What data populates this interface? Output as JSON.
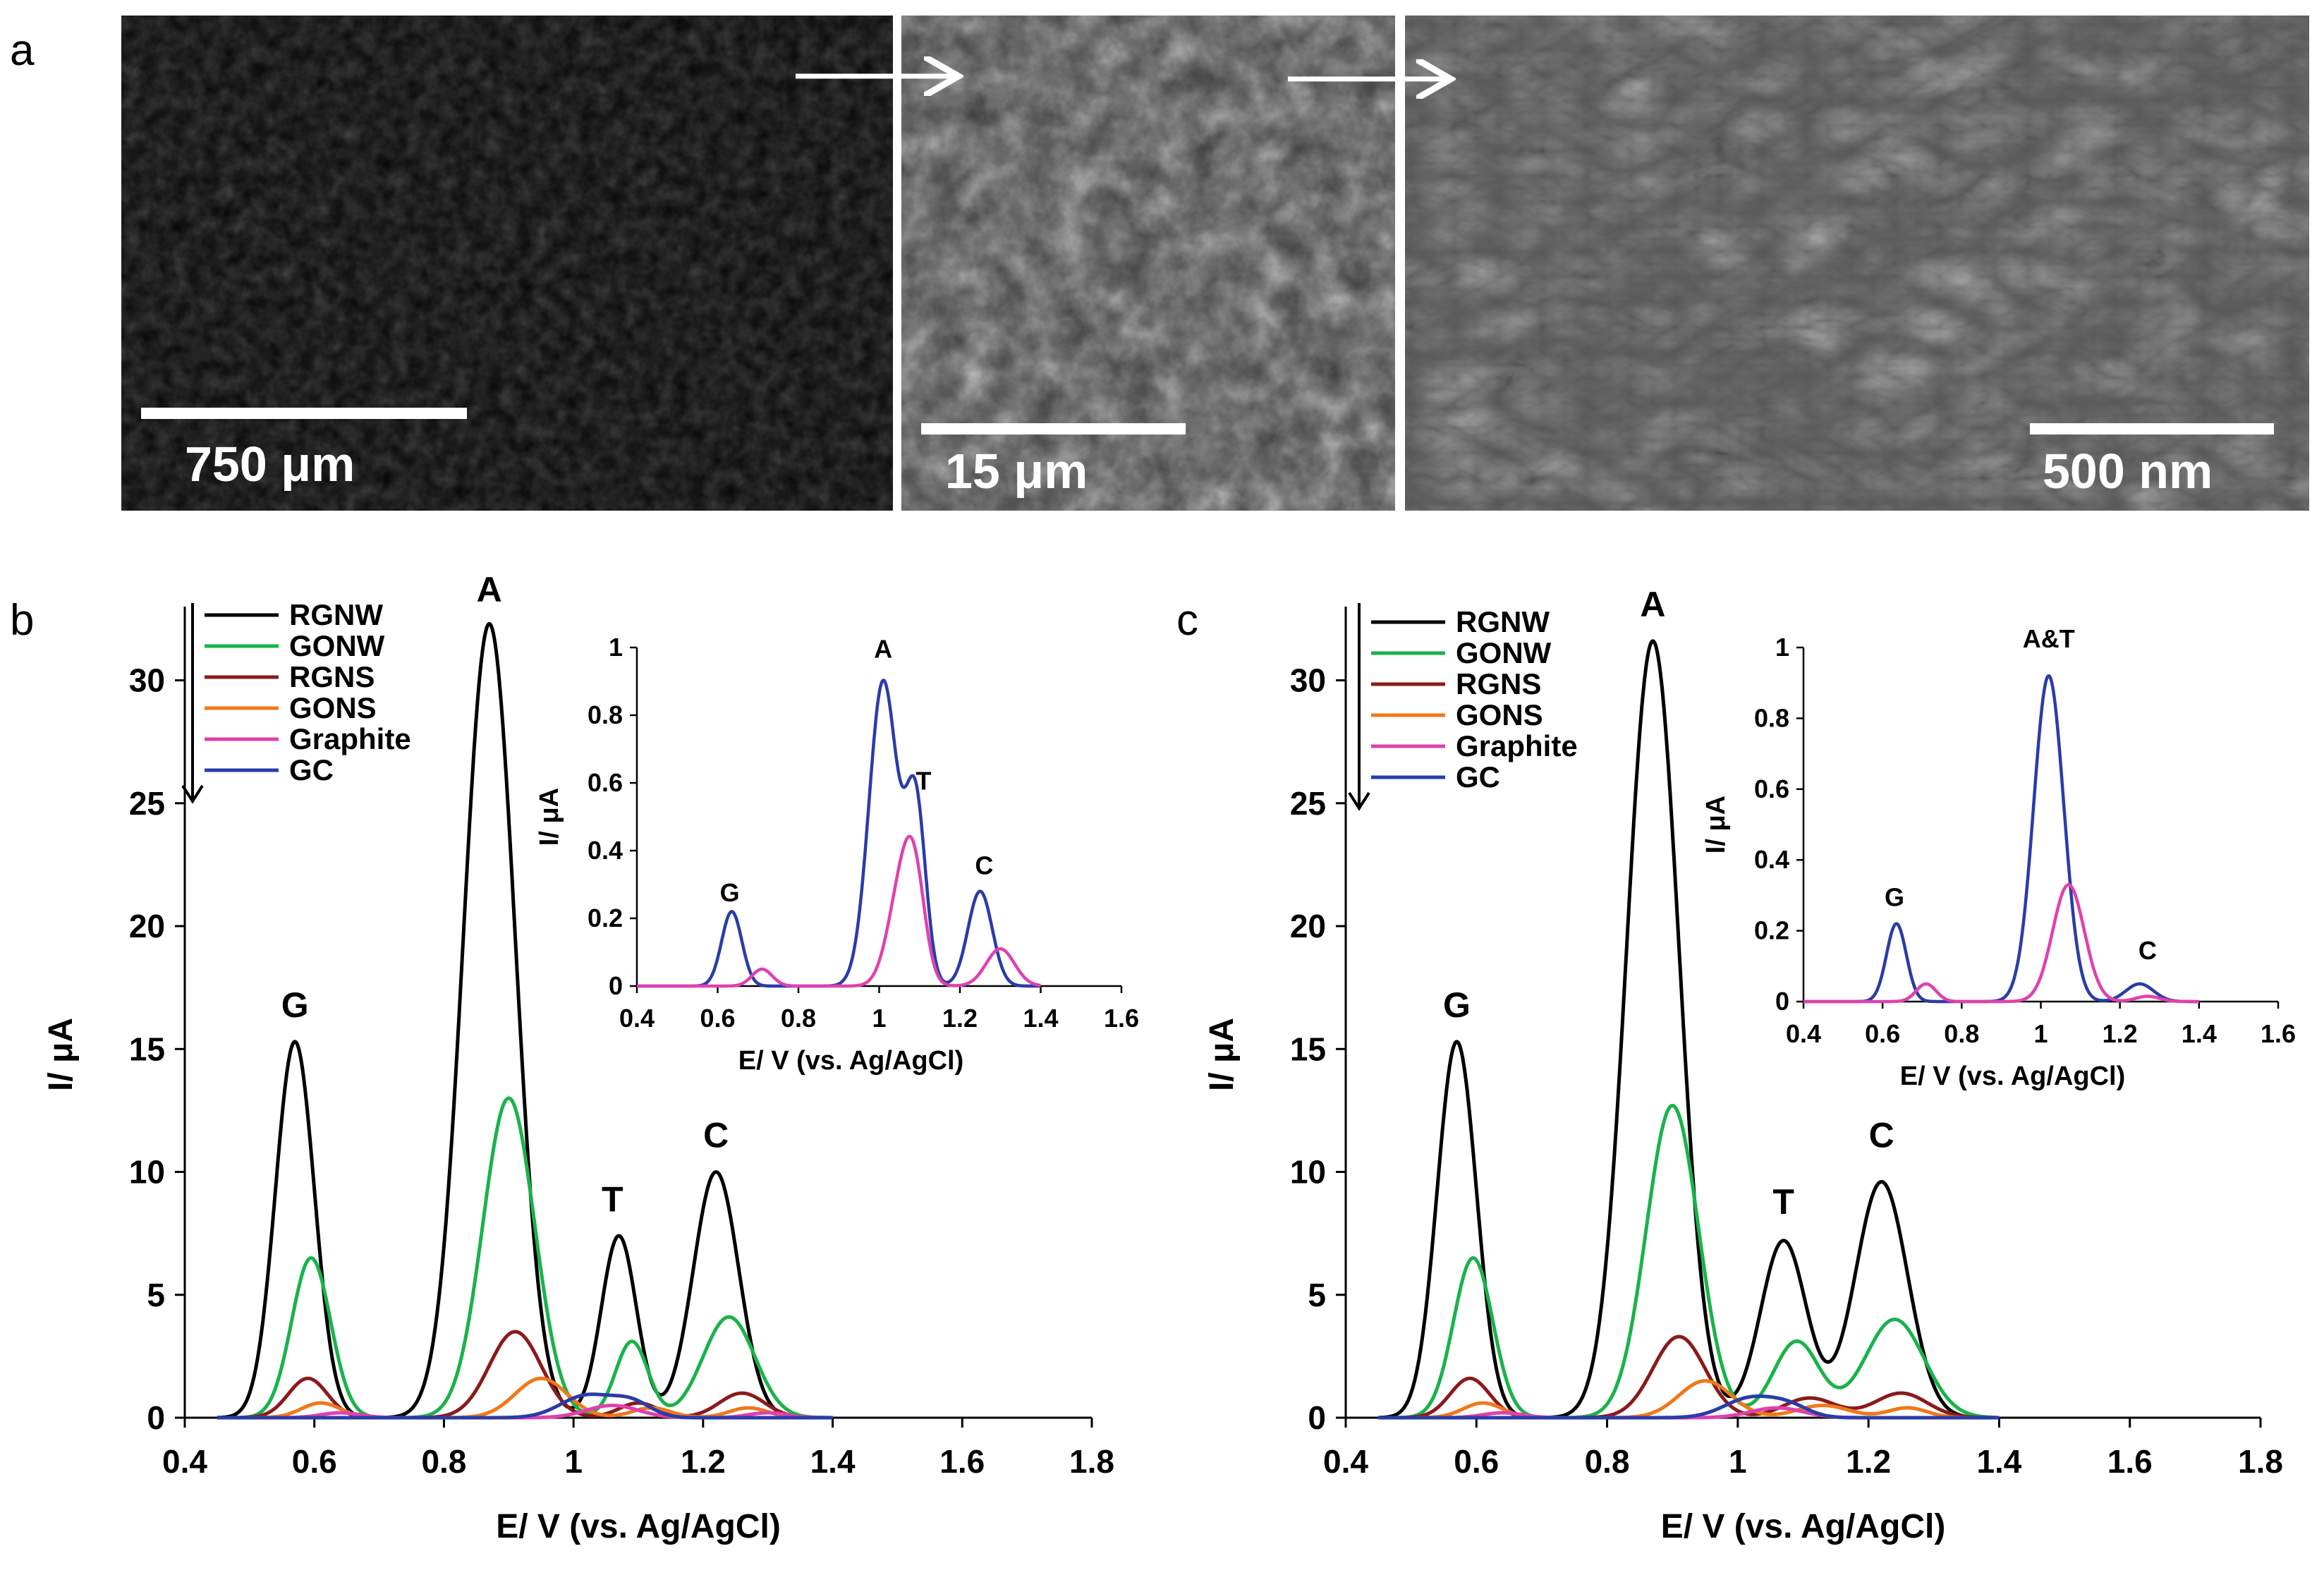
{
  "figure": {
    "panel_a_label": "a",
    "panel_b_label": "b",
    "panel_c_label": "c",
    "sem_images": [
      {
        "scale_label": "750 μm"
      },
      {
        "scale_label": "15 μm"
      },
      {
        "scale_label": "500 nm"
      }
    ]
  },
  "colors": {
    "RGNW": "#000000",
    "GONW": "#19b34a",
    "RGNS": "#8b1a1a",
    "GONS": "#f07818",
    "Graphite": "#e040b0",
    "GC": "#2a3ca8"
  },
  "chart_data": [
    {
      "id": "b",
      "type": "line",
      "xlabel": "E/ V (vs. Ag/AgCl)",
      "ylabel": "I/ μA",
      "xlim": [
        0.4,
        1.8
      ],
      "ylim": [
        0,
        33
      ],
      "xticks": [
        "0.4",
        "0.6",
        "0.8",
        "1",
        "1.2",
        "1.4",
        "1.6",
        "1.8"
      ],
      "yticks": [
        "0",
        "5",
        "10",
        "15",
        "20",
        "25",
        "30"
      ],
      "legend": [
        "RGNW",
        "GONW",
        "RGNS",
        "GONS",
        "Graphite",
        "GC"
      ],
      "legend_position": "top-left",
      "peak_labels": [
        {
          "text": "G",
          "x": 0.57,
          "y": 16.3
        },
        {
          "text": "A",
          "x": 0.87,
          "y": 33.2
        },
        {
          "text": "T",
          "x": 1.06,
          "y": 8.4
        },
        {
          "text": "C",
          "x": 1.22,
          "y": 11.0
        }
      ],
      "series": [
        {
          "name": "RGNW",
          "peaks": [
            [
              0.57,
              15.3,
              0.03
            ],
            [
              0.87,
              32.3,
              0.04
            ],
            [
              1.07,
              7.4,
              0.027
            ],
            [
              1.22,
              10.0,
              0.035
            ]
          ]
        },
        {
          "name": "GONW",
          "peaks": [
            [
              0.595,
              6.5,
              0.03
            ],
            [
              0.9,
              13.0,
              0.04
            ],
            [
              1.09,
              3.1,
              0.025
            ],
            [
              1.24,
              4.1,
              0.04
            ]
          ]
        },
        {
          "name": "RGNS",
          "peaks": [
            [
              0.59,
              1.6,
              0.03
            ],
            [
              0.91,
              3.5,
              0.04
            ],
            [
              1.1,
              0.6,
              0.03
            ],
            [
              1.26,
              1.0,
              0.035
            ]
          ]
        },
        {
          "name": "GONS",
          "peaks": [
            [
              0.61,
              0.6,
              0.03
            ],
            [
              0.95,
              1.6,
              0.04
            ],
            [
              1.12,
              0.4,
              0.03
            ],
            [
              1.27,
              0.4,
              0.03
            ]
          ]
        },
        {
          "name": "Graphite",
          "peaks": [
            [
              0.64,
              0.2,
              0.03
            ],
            [
              1.06,
              0.5,
              0.04
            ],
            [
              1.3,
              0.2,
              0.03
            ]
          ]
        },
        {
          "name": "GC",
          "peaks": [
            [
              1.02,
              0.9,
              0.04
            ],
            [
              1.09,
              0.6,
              0.03
            ]
          ]
        }
      ],
      "inset": {
        "xlabel": "E/ V (vs. Ag/AgCl)",
        "ylabel": "I/ μA",
        "xlim": [
          0.4,
          1.6
        ],
        "ylim": [
          0,
          1
        ],
        "xticks": [
          "0.4",
          "0.6",
          "0.8",
          "1",
          "1.2",
          "1.4",
          "1.6"
        ],
        "yticks": [
          "0",
          "0.2",
          "0.4",
          "0.6",
          "0.8",
          "1"
        ],
        "peak_labels": [
          {
            "text": "G",
            "x": 0.63,
            "y": 0.25
          },
          {
            "text": "A",
            "x": 1.01,
            "y": 0.97
          },
          {
            "text": "T",
            "x": 1.11,
            "y": 0.58
          },
          {
            "text": "C",
            "x": 1.26,
            "y": 0.33
          }
        ],
        "series": [
          {
            "name": "GC",
            "peaks": [
              [
                0.635,
                0.22,
                0.025
              ],
              [
                1.01,
                0.9,
                0.035
              ],
              [
                1.09,
                0.54,
                0.025
              ],
              [
                1.25,
                0.28,
                0.03
              ]
            ]
          },
          {
            "name": "Graphite",
            "peaks": [
              [
                0.71,
                0.05,
                0.025
              ],
              [
                1.06,
                0.32,
                0.035
              ],
              [
                1.09,
                0.18,
                0.025
              ],
              [
                1.3,
                0.11,
                0.035
              ]
            ]
          }
        ]
      }
    },
    {
      "id": "c",
      "type": "line",
      "xlabel": "E/ V (vs. Ag/AgCl)",
      "ylabel": "I/ μA",
      "xlim": [
        0.4,
        1.8
      ],
      "ylim": [
        0,
        33
      ],
      "xticks": [
        "0.4",
        "0.6",
        "0.8",
        "1",
        "1.2",
        "1.4",
        "1.6",
        "1.8"
      ],
      "yticks": [
        "0",
        "5",
        "10",
        "15",
        "20",
        "25",
        "30"
      ],
      "legend": [
        "RGNW",
        "GONW",
        "RGNS",
        "GONS",
        "Graphite",
        "GC"
      ],
      "legend_position": "top-left",
      "peak_labels": [
        {
          "text": "G",
          "x": 0.57,
          "y": 16.3
        },
        {
          "text": "A",
          "x": 0.87,
          "y": 32.6
        },
        {
          "text": "T",
          "x": 1.07,
          "y": 8.3
        },
        {
          "text": "C",
          "x": 1.22,
          "y": 11.0
        }
      ],
      "series": [
        {
          "name": "RGNW",
          "peaks": [
            [
              0.57,
              15.3,
              0.03
            ],
            [
              0.87,
              31.6,
              0.04
            ],
            [
              1.07,
              7.2,
              0.035
            ],
            [
              1.22,
              9.6,
              0.04
            ]
          ]
        },
        {
          "name": "GONW",
          "peaks": [
            [
              0.595,
              6.5,
              0.03
            ],
            [
              0.9,
              12.7,
              0.04
            ],
            [
              1.09,
              3.1,
              0.035
            ],
            [
              1.24,
              4.0,
              0.045
            ]
          ]
        },
        {
          "name": "RGNS",
          "peaks": [
            [
              0.59,
              1.6,
              0.03
            ],
            [
              0.91,
              3.3,
              0.04
            ],
            [
              1.11,
              0.8,
              0.04
            ],
            [
              1.25,
              1.0,
              0.04
            ]
          ]
        },
        {
          "name": "GONS",
          "peaks": [
            [
              0.61,
              0.6,
              0.03
            ],
            [
              0.95,
              1.5,
              0.04
            ],
            [
              1.13,
              0.5,
              0.04
            ],
            [
              1.26,
              0.4,
              0.03
            ]
          ]
        },
        {
          "name": "Graphite",
          "peaks": [
            [
              0.64,
              0.2,
              0.03
            ],
            [
              1.06,
              0.4,
              0.04
            ]
          ]
        },
        {
          "name": "GC",
          "peaks": [
            [
              1.02,
              0.8,
              0.04
            ],
            [
              1.08,
              0.4,
              0.03
            ]
          ]
        }
      ],
      "inset": {
        "xlabel": "E/ V (vs. Ag/AgCl)",
        "ylabel": "I/ μA",
        "xlim": [
          0.4,
          1.6
        ],
        "ylim": [
          0,
          1
        ],
        "xticks": [
          "0.4",
          "0.6",
          "0.8",
          "1",
          "1.2",
          "1.4",
          "1.6"
        ],
        "yticks": [
          "0",
          "0.2",
          "0.4",
          "0.6",
          "0.8",
          "1"
        ],
        "peak_labels": [
          {
            "text": "G",
            "x": 0.63,
            "y": 0.27
          },
          {
            "text": "A&T",
            "x": 1.02,
            "y": 1.0
          },
          {
            "text": "C",
            "x": 1.27,
            "y": 0.12
          }
        ],
        "series": [
          {
            "name": "GC",
            "peaks": [
              [
                0.635,
                0.22,
                0.025
              ],
              [
                1.02,
                0.92,
                0.038
              ],
              [
                1.25,
                0.05,
                0.035
              ]
            ]
          },
          {
            "name": "Graphite",
            "peaks": [
              [
                0.71,
                0.05,
                0.025
              ],
              [
                1.07,
                0.33,
                0.04
              ],
              [
                1.27,
                0.015,
                0.03
              ]
            ]
          }
        ]
      }
    }
  ]
}
